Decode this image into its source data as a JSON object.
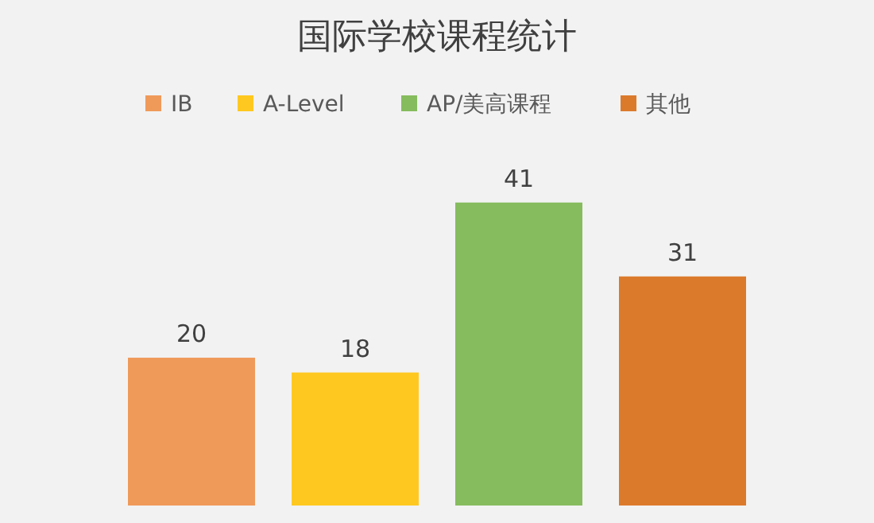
{
  "chart_data": {
    "type": "bar",
    "title": "国际学校课程统计",
    "categories": [
      null
    ],
    "series": [
      {
        "name": "IB",
        "color": "#f09a5a",
        "values": [
          20
        ]
      },
      {
        "name": "A-Level",
        "color": "#ffc820",
        "values": [
          18
        ]
      },
      {
        "name": "AP/美高课程",
        "color": "#86bc5e",
        "values": [
          41
        ]
      },
      {
        "name": "其他",
        "color": "#dc7a2c",
        "values": [
          31
        ]
      }
    ],
    "data_labels": true,
    "legend": "top"
  }
}
